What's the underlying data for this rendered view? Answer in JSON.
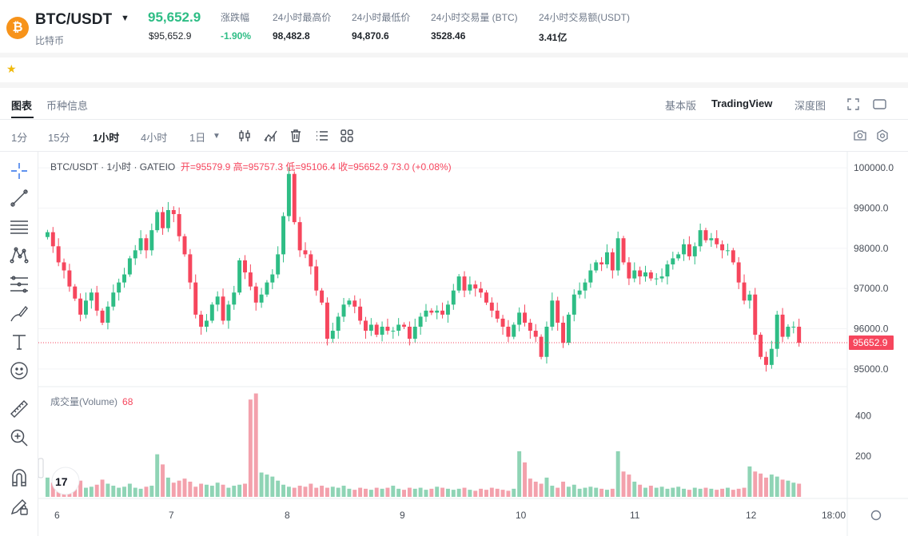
{
  "ticker": {
    "coin_initial": "₿",
    "pair": "BTC/USDT",
    "coin_name": "比特币",
    "last_price": "95,652.9",
    "last_price_usd": "$95,652.9",
    "stats": [
      {
        "label": "涨跌幅",
        "value": "-1.90%"
      },
      {
        "label": "24小时最高价",
        "value": "98,482.8"
      },
      {
        "label": "24小时最低价",
        "value": "94,870.6"
      },
      {
        "label": "24小时交易量 (BTC)",
        "value": "3528.46"
      },
      {
        "label": "24小时交易额(USDT)",
        "value": "3.41亿"
      }
    ]
  },
  "tabs": [
    "图表",
    "币种信息"
  ],
  "views": [
    "基本版",
    "TradingView",
    "深度图"
  ],
  "intervals": [
    "1分",
    "15分",
    "1小时",
    "4小时",
    "1日"
  ],
  "legend": {
    "title": "BTC/USDT · 1小时 · GATEIO",
    "open": "开=95579.9",
    "high": "高=95757.3",
    "low": "低=95106.4",
    "close": "收=95652.9",
    "change": "73.0 (+0.08%)"
  },
  "volume_legend": {
    "label": "成交量(Volume)",
    "value": "68"
  },
  "colors": {
    "up": "#2ebd85",
    "down": "#f6465d",
    "up_vol": "#8fd4b5",
    "down_vol": "#f3a1ac"
  },
  "chart_data": {
    "type": "candlestick",
    "price_axis": {
      "ticks": [
        95000,
        96000,
        97000,
        98000,
        99000,
        100000
      ],
      "range": [
        94600,
        100400
      ],
      "current": 95652.9,
      "current_label": "95652.9"
    },
    "volume_axis": {
      "ticks": [
        200,
        400
      ],
      "range": [
        0,
        520
      ]
    },
    "x_ticks": [
      "6",
      "7",
      "8",
      "9",
      "10",
      "11",
      "12",
      "18:00"
    ],
    "closes": [
      98400,
      98050,
      97650,
      97450,
      97050,
      96750,
      96350,
      96700,
      96900,
      96450,
      96150,
      96550,
      96900,
      97150,
      97350,
      97750,
      97950,
      98250,
      97950,
      98450,
      98900,
      98500,
      98950,
      98850,
      98300,
      97850,
      97150,
      96350,
      96050,
      96200,
      96600,
      96800,
      96200,
      96600,
      96900,
      97700,
      97400,
      97050,
      96650,
      96850,
      97150,
      97350,
      97850,
      98800,
      99850,
      98650,
      97950,
      97850,
      97550,
      96950,
      96650,
      95750,
      95950,
      96300,
      96600,
      96700,
      96550,
      96200,
      95950,
      96100,
      95850,
      96050,
      95950,
      95950,
      96100,
      96050,
      95750,
      96050,
      96300,
      96450,
      96400,
      96450,
      96350,
      96600,
      96950,
      97300,
      96950,
      97100,
      97000,
      96900,
      96650,
      96450,
      96250,
      96050,
      95800,
      96100,
      96400,
      96150,
      95950,
      95800,
      95300,
      96050,
      96700,
      96150,
      95650,
      96350,
      96850,
      96950,
      97150,
      97450,
      97650,
      97600,
      97900,
      97450,
      98250,
      97650,
      97250,
      97450,
      97300,
      97400,
      97250,
      97250,
      97300,
      97600,
      97750,
      97850,
      98100,
      97800,
      98050,
      98450,
      98200,
      98250,
      98100,
      97950,
      97950,
      97650,
      97150,
      96700,
      96850,
      95850,
      95300,
      95100,
      95500,
      96350,
      95800,
      96050,
      96050,
      95650
    ],
    "volumes": [
      95,
      70,
      55,
      50,
      65,
      75,
      80,
      45,
      50,
      60,
      85,
      65,
      55,
      45,
      50,
      65,
      45,
      40,
      50,
      55,
      210,
      160,
      95,
      70,
      80,
      90,
      75,
      50,
      65,
      60,
      55,
      70,
      60,
      45,
      55,
      60,
      65,
      480,
      510,
      120,
      110,
      100,
      80,
      60,
      50,
      45,
      55,
      50,
      65,
      45,
      55,
      45,
      50,
      45,
      55,
      40,
      35,
      45,
      40,
      35,
      45,
      40,
      45,
      55,
      40,
      35,
      45,
      40,
      45,
      35,
      40,
      50,
      45,
      40,
      35,
      40,
      45,
      35,
      30,
      40,
      35,
      45,
      40,
      35,
      30,
      40,
      225,
      170,
      90,
      75,
      65,
      95,
      55,
      45,
      75,
      50,
      60,
      40,
      45,
      50,
      45,
      40,
      35,
      40,
      225,
      125,
      110,
      75,
      60,
      45,
      55,
      45,
      50,
      40,
      45,
      50,
      40,
      35,
      45,
      40,
      45,
      40,
      35,
      40,
      45,
      35,
      40,
      45,
      150,
      125,
      115,
      95,
      110,
      100,
      85,
      80,
      70,
      65
    ]
  }
}
